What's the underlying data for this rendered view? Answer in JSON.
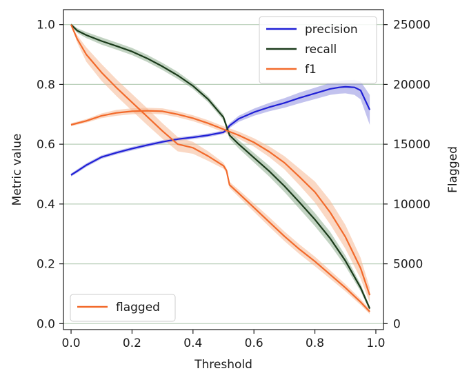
{
  "chart_data": {
    "type": "line",
    "xlabel": "Threshold",
    "ylabel": "Metric value",
    "y2label": "Flagged",
    "xlim": [
      -0.025,
      1.025
    ],
    "ylim": [
      -0.02,
      1.05
    ],
    "y2lim": [
      -500,
      26250
    ],
    "x_ticks": [
      0.0,
      0.2,
      0.4,
      0.6,
      0.8,
      1.0
    ],
    "x_tick_labels": [
      "0.0",
      "0.2",
      "0.4",
      "0.6",
      "0.8",
      "1.0"
    ],
    "y_ticks": [
      0.0,
      0.2,
      0.4,
      0.6,
      0.8,
      1.0
    ],
    "y_tick_labels": [
      "0.0",
      "0.2",
      "0.4",
      "0.6",
      "0.8",
      "1.0"
    ],
    "y2_ticks": [
      0,
      5000,
      10000,
      15000,
      20000,
      25000
    ],
    "y2_tick_labels": [
      "0",
      "5000",
      "10000",
      "15000",
      "20000",
      "25000"
    ],
    "grid": "horizontal",
    "legend_main": {
      "placement": "top-right",
      "entries": [
        "precision",
        "recall",
        "f1"
      ]
    },
    "legend_secondary": {
      "placement": "bottom-left",
      "entries": [
        "flagged"
      ]
    },
    "series": [
      {
        "name": "precision",
        "axis": "left",
        "color": "#1f1fd6",
        "band_color": "#9090e0",
        "x": [
          0,
          0.02,
          0.05,
          0.1,
          0.15,
          0.2,
          0.25,
          0.3,
          0.35,
          0.4,
          0.45,
          0.5,
          0.51,
          0.52,
          0.55,
          0.6,
          0.65,
          0.7,
          0.75,
          0.8,
          0.85,
          0.88,
          0.9,
          0.93,
          0.95,
          0.98
        ],
        "y": [
          0.497,
          0.51,
          0.53,
          0.557,
          0.572,
          0.585,
          0.597,
          0.608,
          0.617,
          0.623,
          0.63,
          0.64,
          0.648,
          0.662,
          0.685,
          0.707,
          0.724,
          0.738,
          0.755,
          0.77,
          0.785,
          0.79,
          0.792,
          0.79,
          0.78,
          0.715
        ],
        "band": [
          0.005,
          0.006,
          0.006,
          0.006,
          0.006,
          0.006,
          0.006,
          0.006,
          0.006,
          0.006,
          0.006,
          0.006,
          0.007,
          0.008,
          0.01,
          0.012,
          0.014,
          0.016,
          0.018,
          0.019,
          0.02,
          0.021,
          0.022,
          0.025,
          0.03,
          0.05
        ]
      },
      {
        "name": "recall",
        "axis": "left",
        "color": "#1a3a1a",
        "band_color": "#8fae8f",
        "x": [
          0,
          0.02,
          0.05,
          0.1,
          0.15,
          0.2,
          0.25,
          0.3,
          0.35,
          0.4,
          0.45,
          0.5,
          0.51,
          0.52,
          0.55,
          0.6,
          0.65,
          0.7,
          0.75,
          0.8,
          0.85,
          0.9,
          0.95,
          0.98
        ],
        "y": [
          1.0,
          0.98,
          0.965,
          0.945,
          0.928,
          0.91,
          0.887,
          0.86,
          0.83,
          0.795,
          0.75,
          0.69,
          0.66,
          0.63,
          0.6,
          0.555,
          0.51,
          0.46,
          0.405,
          0.348,
          0.285,
          0.21,
          0.12,
          0.05
        ],
        "band": [
          0.004,
          0.008,
          0.01,
          0.012,
          0.012,
          0.012,
          0.012,
          0.012,
          0.012,
          0.01,
          0.01,
          0.01,
          0.01,
          0.012,
          0.014,
          0.016,
          0.018,
          0.02,
          0.022,
          0.022,
          0.022,
          0.018,
          0.012,
          0.008
        ]
      },
      {
        "name": "f1",
        "axis": "left",
        "color": "#f26a2b",
        "band_color": "#f5b894",
        "x": [
          0,
          0.05,
          0.1,
          0.15,
          0.2,
          0.25,
          0.3,
          0.35,
          0.4,
          0.45,
          0.5,
          0.55,
          0.6,
          0.65,
          0.7,
          0.75,
          0.8,
          0.85,
          0.9,
          0.95,
          0.98
        ],
        "y": [
          0.665,
          0.678,
          0.695,
          0.705,
          0.71,
          0.712,
          0.71,
          0.7,
          0.687,
          0.67,
          0.65,
          0.63,
          0.606,
          0.575,
          0.538,
          0.49,
          0.44,
          0.372,
          0.29,
          0.185,
          0.095
        ],
        "band": [
          0.005,
          0.006,
          0.008,
          0.01,
          0.01,
          0.01,
          0.01,
          0.01,
          0.01,
          0.01,
          0.01,
          0.012,
          0.014,
          0.018,
          0.022,
          0.028,
          0.035,
          0.04,
          0.04,
          0.035,
          0.025
        ]
      },
      {
        "name": "flagged",
        "axis": "right",
        "color": "#f26a2b",
        "band_color": "#f5b894",
        "x": [
          0,
          0.02,
          0.05,
          0.1,
          0.15,
          0.2,
          0.25,
          0.3,
          0.35,
          0.4,
          0.45,
          0.5,
          0.51,
          0.52,
          0.55,
          0.6,
          0.65,
          0.7,
          0.75,
          0.8,
          0.85,
          0.9,
          0.95,
          0.98
        ],
        "y": [
          25000,
          23800,
          22500,
          21000,
          19700,
          18500,
          17300,
          16100,
          15000,
          14700,
          14000,
          13200,
          12800,
          11600,
          10900,
          9700,
          8500,
          7300,
          6200,
          5200,
          4100,
          3000,
          1800,
          1000
        ],
        "band": [
          0,
          300,
          600,
          700,
          700,
          700,
          700,
          650,
          600,
          500,
          400,
          250,
          200,
          250,
          300,
          350,
          400,
          400,
          400,
          400,
          350,
          300,
          250,
          200
        ]
      }
    ]
  }
}
